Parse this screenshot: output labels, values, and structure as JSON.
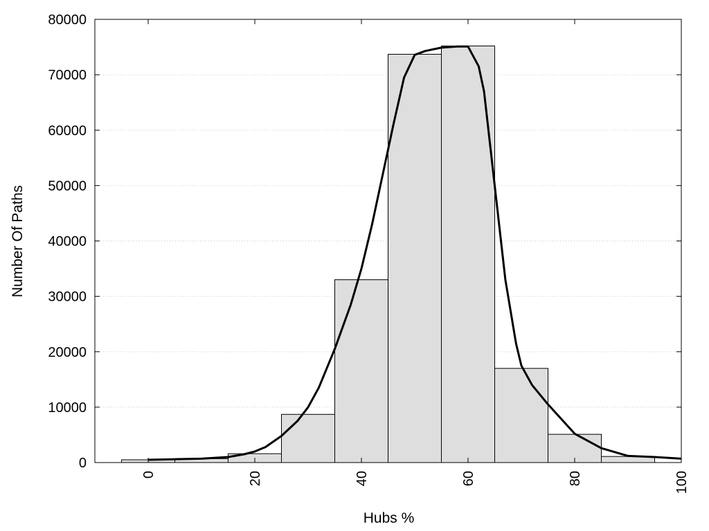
{
  "chart_data": {
    "type": "bar",
    "title": "",
    "xlabel": "Hubs %",
    "ylabel": "Number Of Paths",
    "xlim": [
      -10,
      100
    ],
    "ylim": [
      0,
      80000
    ],
    "grid": true,
    "x_ticks": [
      0,
      20,
      40,
      60,
      80,
      100
    ],
    "y_ticks": [
      0,
      10000,
      20000,
      30000,
      40000,
      50000,
      60000,
      70000,
      80000
    ],
    "bin_width": 10,
    "bins": [
      {
        "center": 0,
        "value": 500
      },
      {
        "center": 10,
        "value": 700
      },
      {
        "center": 20,
        "value": 1600
      },
      {
        "center": 30,
        "value": 8700
      },
      {
        "center": 40,
        "value": 33000
      },
      {
        "center": 50,
        "value": 73700
      },
      {
        "center": 60,
        "value": 75200
      },
      {
        "center": 70,
        "value": 17000
      },
      {
        "center": 80,
        "value": 5100
      },
      {
        "center": 90,
        "value": 1100
      }
    ],
    "curve": {
      "x": [
        0,
        5,
        10,
        15,
        18,
        20,
        22,
        25,
        28,
        30,
        32,
        35,
        38,
        40,
        42,
        44,
        45,
        46,
        48,
        50,
        52,
        55,
        58,
        60,
        62,
        63,
        65,
        67,
        69,
        70,
        72,
        75,
        80,
        85,
        90,
        95,
        100
      ],
      "y": [
        500,
        600,
        700,
        1000,
        1500,
        2000,
        2800,
        4800,
        7500,
        10000,
        13500,
        20500,
        28500,
        35000,
        43000,
        52000,
        56500,
        61000,
        69500,
        73600,
        74300,
        74900,
        75100,
        75100,
        71500,
        67000,
        50000,
        33000,
        21500,
        17500,
        14000,
        10500,
        5200,
        2600,
        1200,
        1000,
        700
      ]
    }
  }
}
